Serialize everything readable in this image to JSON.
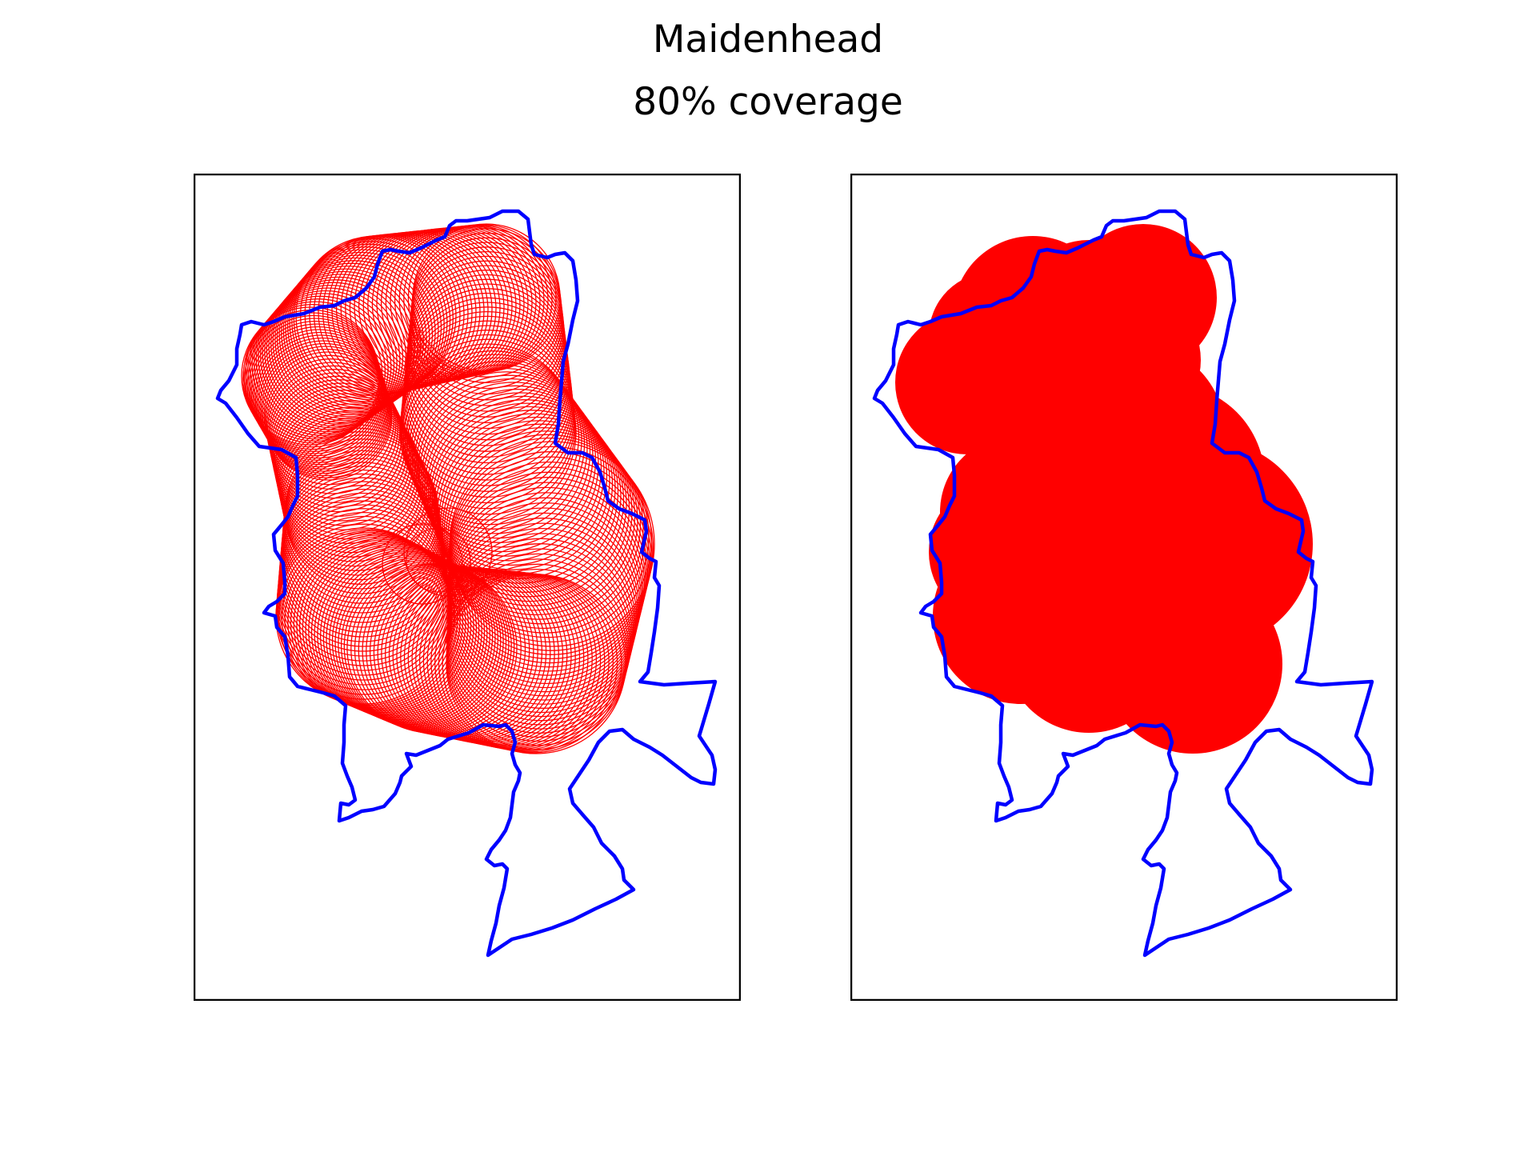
{
  "figure": {
    "title": "Maidenhead",
    "subtitle": "80% coverage"
  },
  "colors": {
    "boundary": "#0000ff",
    "coverage": "#ff0000",
    "frame": "#000000",
    "background": "#ffffff"
  },
  "panels": [
    {
      "name": "circles-panel",
      "style": "outline-circles"
    },
    {
      "name": "filled-panel",
      "style": "filled-union"
    }
  ]
}
